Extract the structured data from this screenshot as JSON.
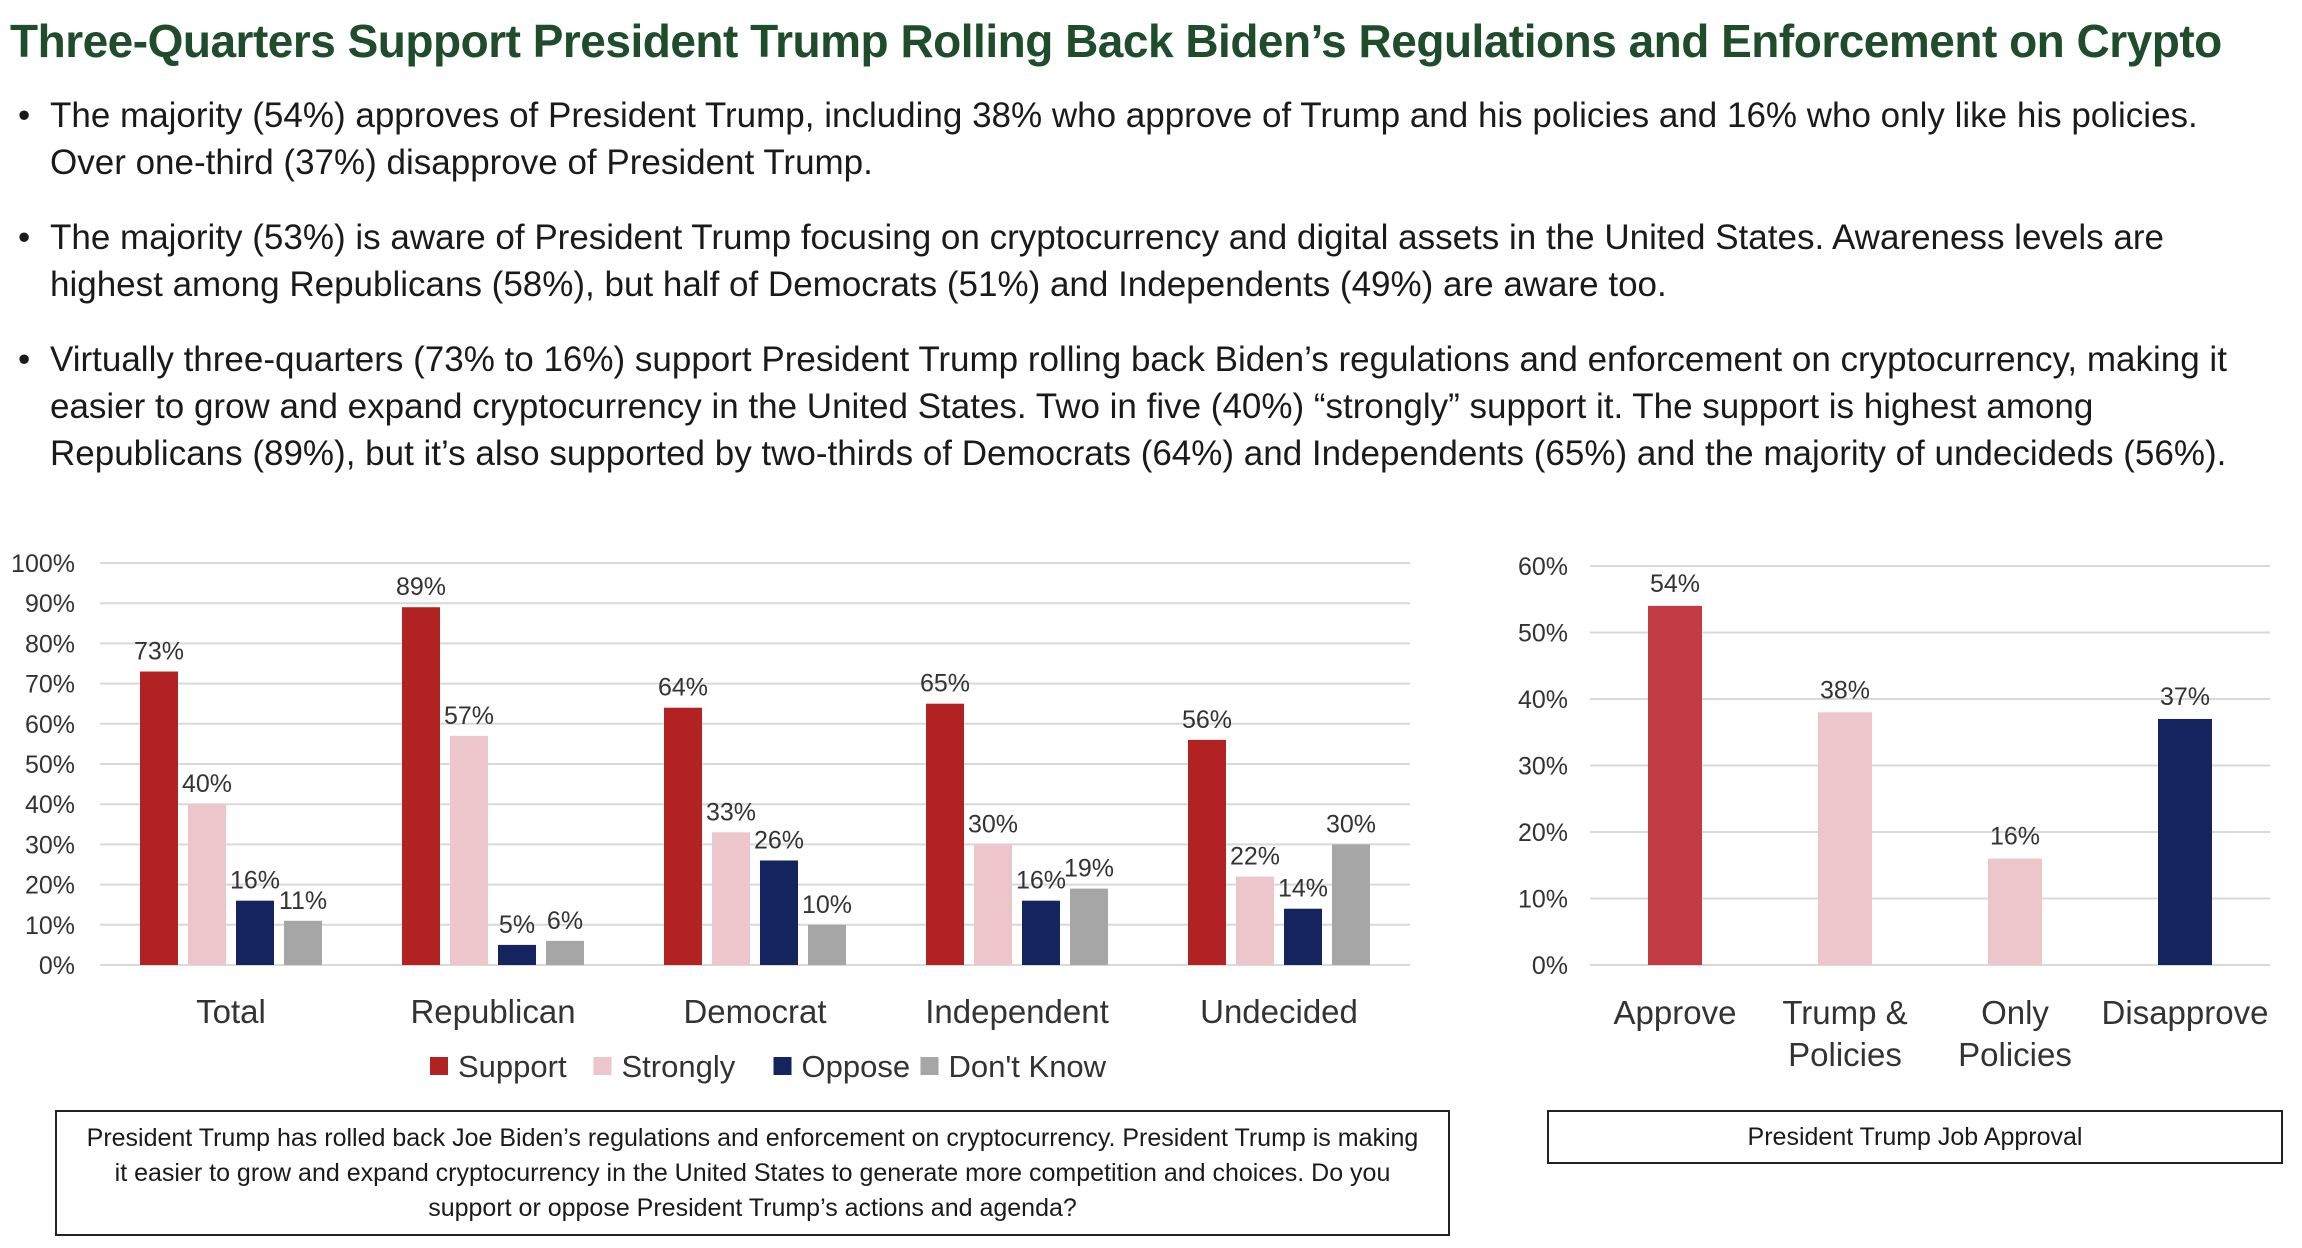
{
  "title": "Three-Quarters Support President Trump Rolling Back Biden’s Regulations and Enforcement on Crypto",
  "bullets": [
    "The  majority (54%) approves of President Trump, including 38% who approve of Trump and his policies and 16% who only like his policies. Over one-third (37%) disapprove of President Trump.",
    "The majority (53%) is aware of President Trump focusing on cryptocurrency and digital assets in the United States. Awareness levels are highest among Republicans (58%), but half of Democrats (51%) and Independents (49%) are aware too.",
    "Virtually three-quarters (73% to 16%) support President Trump rolling back Biden’s regulations and enforcement on cryptocurrency, making it easier to grow and expand cryptocurrency in the United States. Two in five (40%) “strongly” support it. The support is highest among Republicans (89%), but it’s also supported by two-thirds of Democrats (64%) and Independents (65%) and the majority of undecideds (56%)."
  ],
  "question_box": "President Trump has rolled back Joe Biden’s regulations and enforcement on cryptocurrency. President Trump is making it easier to grow and expand cryptocurrency in the United States to generate more competition and choices. Do you support or oppose President Trump’s actions and agenda?",
  "approval_box": "President Trump Job Approval",
  "chart_data": [
    {
      "type": "bar",
      "title": "",
      "categories": [
        "Total",
        "Republican",
        "Democrat",
        "Independent",
        "Undecided"
      ],
      "series": [
        {
          "name": "Support",
          "color": "#b22222",
          "values": [
            73,
            89,
            64,
            65,
            56
          ]
        },
        {
          "name": "Strongly",
          "color": "#ecc6ca",
          "values": [
            40,
            57,
            33,
            30,
            22
          ]
        },
        {
          "name": "Oppose",
          "color": "#14245e",
          "values": [
            16,
            5,
            26,
            16,
            14
          ]
        },
        {
          "name": "Don't Know",
          "color": "#a6a6a6",
          "values": [
            11,
            6,
            10,
            19,
            30
          ]
        }
      ],
      "ylim": [
        0,
        100
      ],
      "yticks": [
        0,
        10,
        20,
        30,
        40,
        50,
        60,
        70,
        80,
        90,
        100
      ],
      "tick_suffix": "%",
      "legend": "bottom",
      "grid": true
    },
    {
      "type": "bar",
      "title": "",
      "categories": [
        "Approve",
        "Trump & Policies",
        "Only Policies",
        "Disapprove"
      ],
      "category_lines": [
        [
          "Approve"
        ],
        [
          "Trump &",
          "Policies"
        ],
        [
          "Only",
          "Policies"
        ],
        [
          "Disapprove"
        ]
      ],
      "values": [
        54,
        38,
        16,
        37
      ],
      "colors": [
        "#c23b44",
        "#ecc6ca",
        "#ecc6ca",
        "#14245e"
      ],
      "ylim": [
        0,
        60
      ],
      "yticks": [
        0,
        10,
        20,
        30,
        40,
        50,
        60
      ],
      "tick_suffix": "%",
      "grid": true
    }
  ]
}
